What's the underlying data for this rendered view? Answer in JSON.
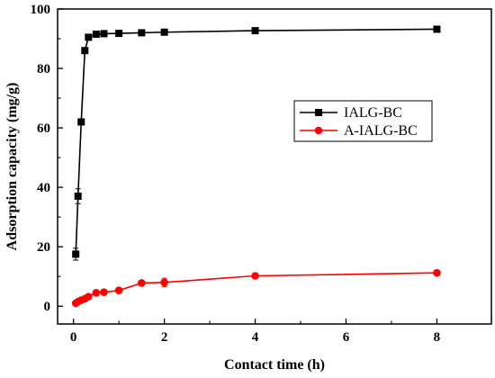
{
  "chart_data": {
    "type": "line",
    "title": "",
    "xlabel": "Contact time (h)",
    "ylabel": "Adsorption capacity (mg/g)",
    "xlim": [
      -0.35,
      9.2
    ],
    "ylim": [
      -6,
      100
    ],
    "xticks": [
      0,
      2,
      4,
      6,
      8
    ],
    "yticks": [
      0,
      20,
      40,
      60,
      80,
      100
    ],
    "grid": false,
    "legend_position": "center-right",
    "series": [
      {
        "name": "IALG-BC",
        "color": "#000000",
        "marker": "square",
        "x": [
          0.05,
          0.1,
          0.17,
          0.25,
          0.33,
          0.5,
          0.67,
          1.0,
          1.5,
          2.0,
          4.0,
          8.0
        ],
        "y": [
          17.5,
          37.0,
          62.0,
          86.0,
          90.5,
          91.5,
          91.7,
          91.8,
          92.0,
          92.2,
          92.7,
          93.2
        ],
        "err": [
          2.0,
          2.5,
          0.6,
          0.5,
          0.5,
          0.4,
          0.4,
          0.4,
          0.4,
          0.4,
          0.4,
          0.4
        ]
      },
      {
        "name": "A-IALG-BC",
        "color": "#ff0000",
        "marker": "circle",
        "x": [
          0.05,
          0.1,
          0.17,
          0.25,
          0.33,
          0.5,
          0.67,
          1.0,
          1.5,
          2.0,
          4.0,
          8.0
        ],
        "y": [
          1.0,
          1.5,
          2.0,
          2.5,
          3.2,
          4.5,
          4.7,
          5.3,
          7.8,
          8.0,
          10.2,
          11.2
        ],
        "err": [
          0.3,
          0.3,
          0.3,
          0.3,
          0.3,
          0.4,
          0.4,
          0.4,
          0.6,
          1.4,
          0.5,
          0.4
        ]
      }
    ]
  }
}
